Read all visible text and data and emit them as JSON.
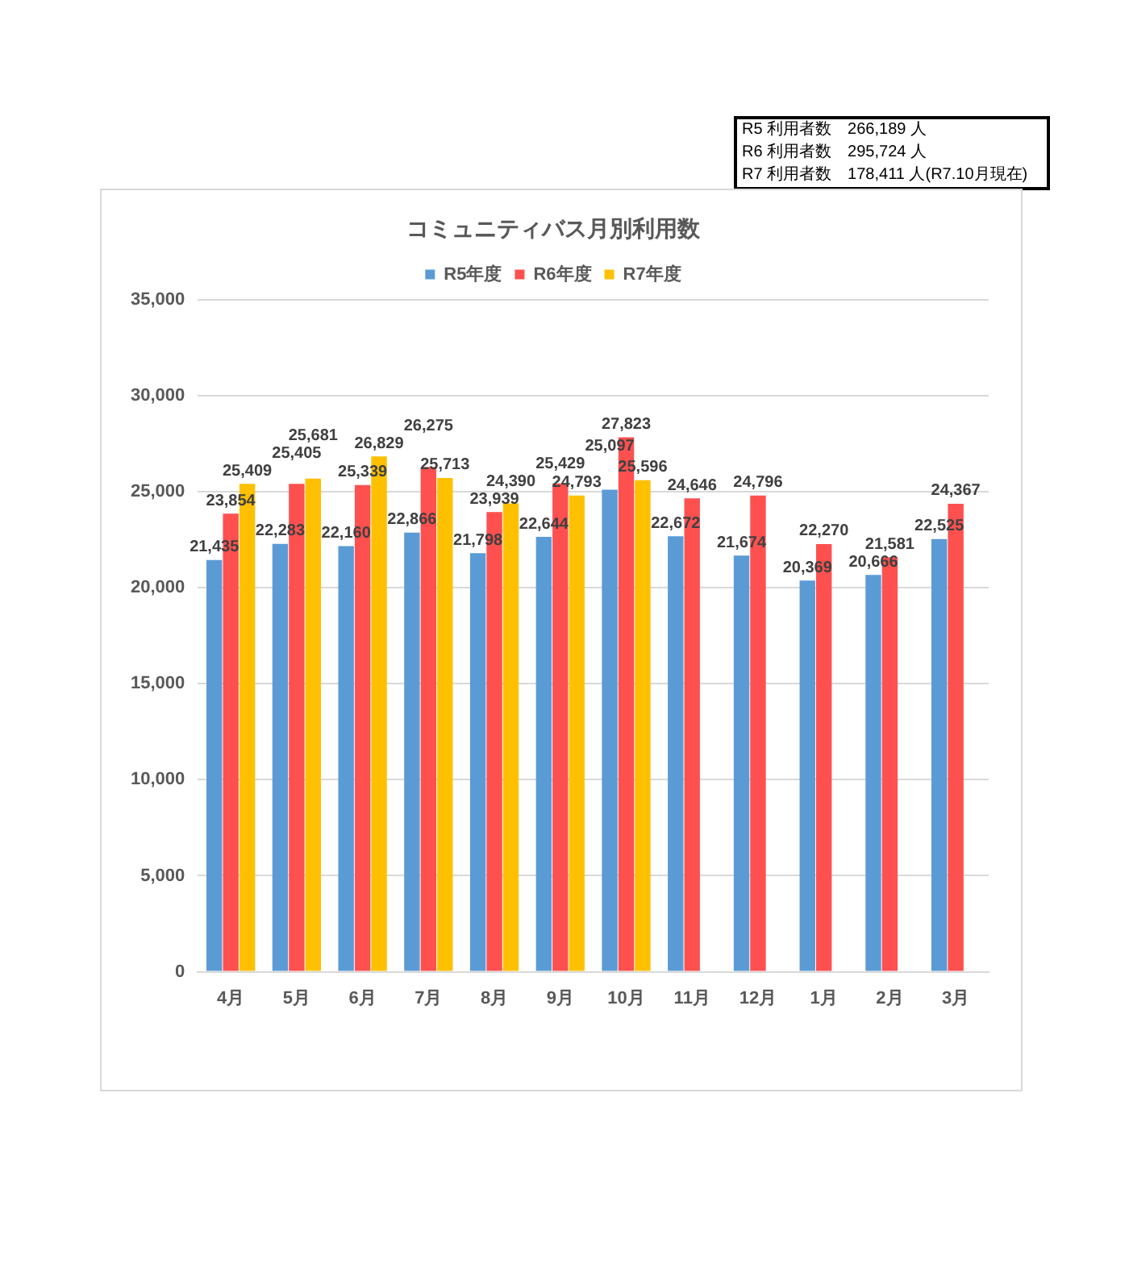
{
  "chart_data": {
    "type": "bar",
    "title": "コミュニティバス月別利用数",
    "categories": [
      "4月",
      "5月",
      "6月",
      "7月",
      "8月",
      "9月",
      "10月",
      "11月",
      "12月",
      "1月",
      "2月",
      "3月"
    ],
    "series": [
      {
        "name": "R5年度",
        "color": "#5b9bd5",
        "values": [
          21435,
          22283,
          22160,
          22866,
          21798,
          22644,
          25097,
          22672,
          21674,
          20369,
          20666,
          22525
        ],
        "value_labels": [
          "21,435",
          "22,283",
          "22,160",
          "22,866",
          "21,798",
          "22,644",
          "25,097",
          "22,672",
          "21,674",
          "20,369",
          "20,666",
          "22,525"
        ]
      },
      {
        "name": "R6年度",
        "color": "#ff5050",
        "values": [
          23854,
          25405,
          25339,
          26275,
          23939,
          25429,
          27823,
          24646,
          24796,
          22270,
          21581,
          24367
        ],
        "value_labels": [
          "23,854",
          "25,405",
          "25,339",
          "26,275",
          "23,939",
          "25,429",
          "27,823",
          "24,646",
          "24,796",
          "22,270",
          "21,581",
          "24,367"
        ]
      },
      {
        "name": "R7年度",
        "color": "#ffc000",
        "values": [
          25409,
          25681,
          26829,
          25713,
          24390,
          24793,
          25596,
          null,
          null,
          null,
          null,
          null
        ],
        "value_labels": [
          "25,409",
          "25,681",
          "26,829",
          "25,713",
          "24,390",
          "24,793",
          "25,596",
          null,
          null,
          null,
          null,
          null
        ]
      }
    ],
    "ylim": [
      0,
      35000
    ],
    "yticks": [
      0,
      {
        "value": 5000,
        "label": "5,000"
      },
      {
        "value": 10000,
        "label": "10,000"
      },
      {
        "value": 15000,
        "label": "15,000"
      },
      {
        "value": 20000,
        "label": "20,000"
      },
      {
        "value": 25000,
        "label": "25,000"
      },
      {
        "value": 30000,
        "label": "30,000"
      },
      {
        "value": 35000,
        "label": "35,000"
      }
    ],
    "grid": "y",
    "legend": "top",
    "annotations": [
      "R5 利用者数　266,189 人",
      "R6 利用者数　295,724 人",
      "R7 利用者数　178,411 人(R7.10月現在)"
    ]
  }
}
